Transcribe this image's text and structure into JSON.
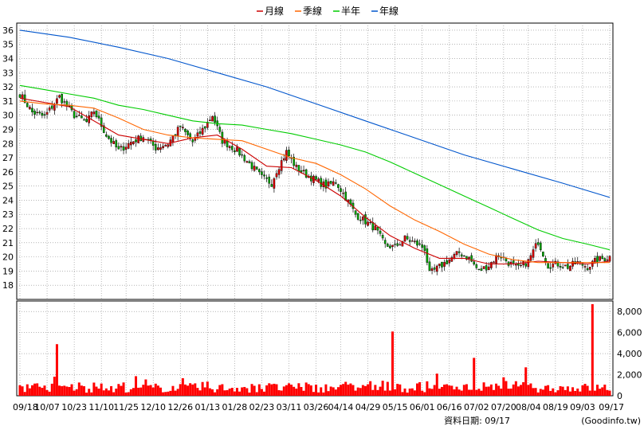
{
  "chart_data": {
    "type": "candlestick-with-volume",
    "legend": [
      {
        "name": "月線",
        "color": "#cc0000"
      },
      {
        "name": "季線",
        "color": "#ff6600"
      },
      {
        "name": "半年",
        "color": "#00cc00"
      },
      {
        "name": "年線",
        "color": "#0055cc"
      }
    ],
    "price_axis": {
      "min": 17,
      "max": 36.5,
      "ticks": [
        18,
        19,
        20,
        21,
        22,
        23,
        24,
        25,
        26,
        27,
        28,
        29,
        30,
        31,
        32,
        33,
        34,
        35,
        36
      ]
    },
    "volume_axis": {
      "min": 0,
      "max": 9000,
      "ticks": [
        0,
        2000,
        4000,
        6000,
        8000
      ],
      "tick_labels": [
        "0",
        "2,000",
        "4,000",
        "6,000",
        "8,000"
      ]
    },
    "x_labels": [
      "09/18",
      "10/07",
      "10/23",
      "11/10",
      "11/25",
      "12/10",
      "12/26",
      "01/13",
      "01/28",
      "02/23",
      "03/11",
      "03/26",
      "04/14",
      "04/29",
      "05/15",
      "06/01",
      "06/16",
      "07/02",
      "07/20",
      "08/04",
      "08/19",
      "09/03",
      "09/17"
    ],
    "n_days": 240,
    "close_anchors": [
      [
        0,
        31.5
      ],
      [
        5,
        30.2
      ],
      [
        10,
        29.9
      ],
      [
        16,
        31.3
      ],
      [
        22,
        30.0
      ],
      [
        27,
        29.5
      ],
      [
        30,
        30.3
      ],
      [
        35,
        28.6
      ],
      [
        40,
        27.5
      ],
      [
        45,
        28.1
      ],
      [
        50,
        28.5
      ],
      [
        55,
        27.7
      ],
      [
        60,
        28.0
      ],
      [
        65,
        29.2
      ],
      [
        70,
        28.1
      ],
      [
        75,
        29.2
      ],
      [
        78,
        30.0
      ],
      [
        82,
        28.2
      ],
      [
        88,
        27.5
      ],
      [
        94,
        26.4
      ],
      [
        98,
        25.6
      ],
      [
        102,
        25.2
      ],
      [
        104,
        26.1
      ],
      [
        108,
        27.4
      ],
      [
        112,
        26.3
      ],
      [
        116,
        25.8
      ],
      [
        120,
        25.4
      ],
      [
        124,
        25.0
      ],
      [
        128,
        25.3
      ],
      [
        132,
        24.2
      ],
      [
        136,
        23.0
      ],
      [
        140,
        22.5
      ],
      [
        144,
        22.0
      ],
      [
        148,
        20.8
      ],
      [
        152,
        20.7
      ],
      [
        156,
        21.3
      ],
      [
        160,
        21.0
      ],
      [
        164,
        20.6
      ],
      [
        166,
        18.8
      ],
      [
        170,
        19.3
      ],
      [
        174,
        19.8
      ],
      [
        178,
        20.3
      ],
      [
        182,
        19.9
      ],
      [
        186,
        19.0
      ],
      [
        190,
        19.4
      ],
      [
        194,
        20.2
      ],
      [
        198,
        19.6
      ],
      [
        202,
        19.2
      ],
      [
        206,
        19.7
      ],
      [
        210,
        21.1
      ],
      [
        214,
        19.4
      ],
      [
        218,
        19.5
      ],
      [
        222,
        19.3
      ],
      [
        226,
        19.6
      ],
      [
        230,
        19.3
      ],
      [
        234,
        19.8
      ],
      [
        237,
        19.9
      ],
      [
        239,
        20.0
      ]
    ],
    "volume_spikes": [
      [
        15,
        4900
      ],
      [
        151,
        6100
      ],
      [
        169,
        2100
      ],
      [
        184,
        3600
      ],
      [
        205,
        2700
      ],
      [
        232,
        8700
      ]
    ],
    "ma_lines": {
      "月線": [
        [
          0,
          31.2
        ],
        [
          20,
          30.6
        ],
        [
          40,
          28.6
        ],
        [
          60,
          28.0
        ],
        [
          70,
          28.4
        ],
        [
          80,
          28.6
        ],
        [
          90,
          27.6
        ],
        [
          100,
          26.4
        ],
        [
          110,
          26.3
        ],
        [
          120,
          25.4
        ],
        [
          130,
          24.3
        ],
        [
          140,
          22.8
        ],
        [
          150,
          21.5
        ],
        [
          160,
          20.6
        ],
        [
          170,
          19.9
        ],
        [
          180,
          19.9
        ],
        [
          190,
          19.5
        ],
        [
          200,
          19.5
        ],
        [
          210,
          19.7
        ],
        [
          220,
          19.6
        ],
        [
          230,
          19.5
        ],
        [
          239,
          19.7
        ]
      ],
      "季線": [
        [
          0,
          31.0
        ],
        [
          10,
          30.8
        ],
        [
          20,
          30.7
        ],
        [
          30,
          30.5
        ],
        [
          40,
          29.8
        ],
        [
          50,
          29.0
        ],
        [
          60,
          28.6
        ],
        [
          70,
          28.4
        ],
        [
          80,
          28.3
        ],
        [
          90,
          28.2
        ],
        [
          100,
          27.6
        ],
        [
          110,
          27.0
        ],
        [
          120,
          26.6
        ],
        [
          130,
          25.8
        ],
        [
          140,
          24.8
        ],
        [
          150,
          23.6
        ],
        [
          160,
          22.6
        ],
        [
          170,
          21.8
        ],
        [
          180,
          20.9
        ],
        [
          190,
          20.2
        ],
        [
          200,
          19.8
        ],
        [
          210,
          19.6
        ],
        [
          220,
          19.6
        ],
        [
          230,
          19.6
        ],
        [
          239,
          19.6
        ]
      ],
      "半年": [
        [
          0,
          32.1
        ],
        [
          10,
          31.8
        ],
        [
          20,
          31.5
        ],
        [
          30,
          31.2
        ],
        [
          40,
          30.7
        ],
        [
          50,
          30.4
        ],
        [
          60,
          30.0
        ],
        [
          70,
          29.6
        ],
        [
          80,
          29.4
        ],
        [
          90,
          29.3
        ],
        [
          100,
          29.0
        ],
        [
          110,
          28.7
        ],
        [
          120,
          28.3
        ],
        [
          130,
          27.9
        ],
        [
          140,
          27.4
        ],
        [
          150,
          26.7
        ],
        [
          160,
          25.9
        ],
        [
          170,
          25.1
        ],
        [
          180,
          24.3
        ],
        [
          190,
          23.5
        ],
        [
          200,
          22.7
        ],
        [
          210,
          21.9
        ],
        [
          220,
          21.3
        ],
        [
          230,
          20.9
        ],
        [
          239,
          20.5
        ]
      ],
      "年線": [
        [
          0,
          36.0
        ],
        [
          20,
          35.5
        ],
        [
          40,
          34.8
        ],
        [
          60,
          34.0
        ],
        [
          80,
          33.0
        ],
        [
          100,
          32.0
        ],
        [
          120,
          30.8
        ],
        [
          140,
          29.6
        ],
        [
          160,
          28.4
        ],
        [
          180,
          27.2
        ],
        [
          200,
          26.2
        ],
        [
          220,
          25.2
        ],
        [
          239,
          24.2
        ]
      ]
    }
  },
  "footer": {
    "label": "資料日期: 09/17",
    "source": "(Goodinfo.tw)"
  }
}
